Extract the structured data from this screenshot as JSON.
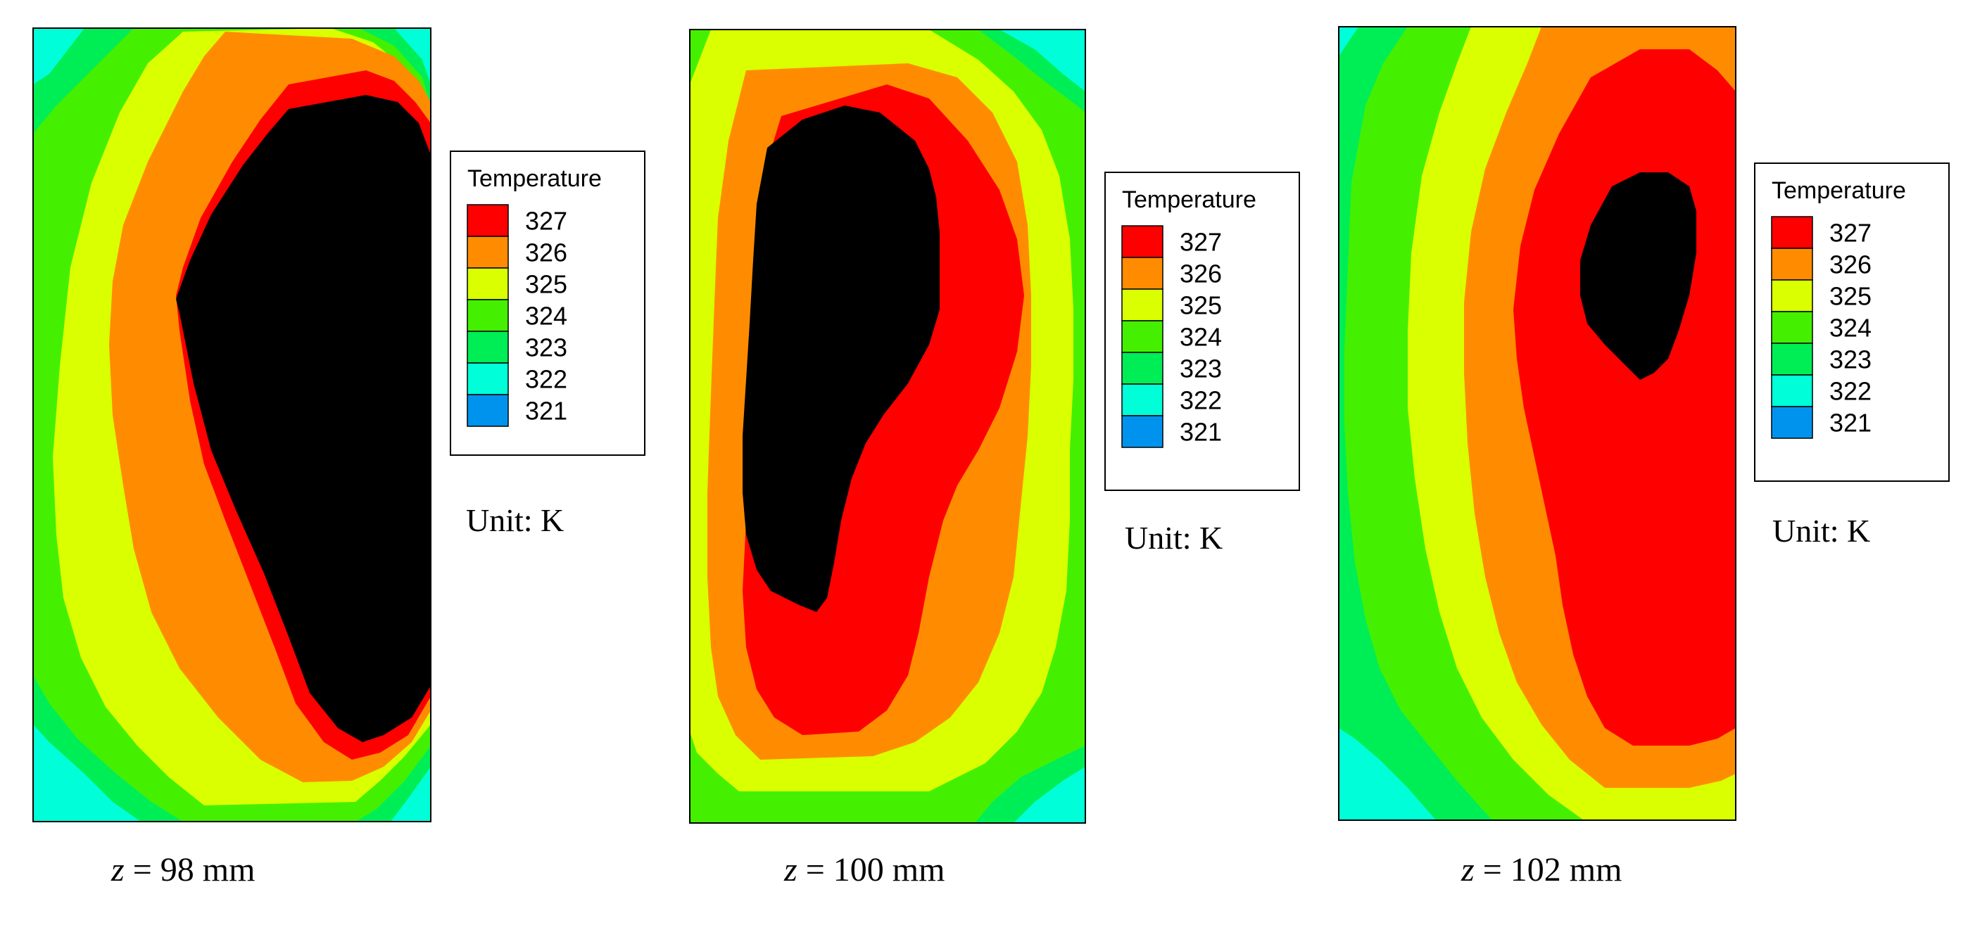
{
  "colors": {
    "level_327": "#ff0000",
    "level_326": "#ff8c00",
    "level_325": "#d9ff00",
    "level_324": "#44f000",
    "level_323": "#00ee55",
    "level_322": "#00ffd8",
    "level_321": "#0093ee",
    "level_320": "#0000ee",
    "frame": "#000000"
  },
  "chart_data": [
    {
      "type": "heatmap",
      "variable": "z",
      "position_value": "98",
      "position_unit": "mm",
      "caption_equals": " = 98 mm",
      "legend": {
        "title": "Temperature",
        "levels": [
          "327",
          "326",
          "325",
          "324",
          "323",
          "322",
          "321"
        ]
      },
      "unit_label": "Unit: K",
      "value_range": [
        321,
        327
      ]
    },
    {
      "type": "heatmap",
      "variable": "z",
      "position_value": "100",
      "position_unit": "mm",
      "caption_equals": " = 100 mm",
      "legend": {
        "title": "Temperature",
        "levels": [
          "327",
          "326",
          "325",
          "324",
          "323",
          "322",
          "321"
        ]
      },
      "unit_label": "Unit: K",
      "value_range": [
        321,
        327
      ]
    },
    {
      "type": "heatmap",
      "variable": "z",
      "position_value": "102",
      "position_unit": "mm",
      "caption_equals": " = 102 mm",
      "legend": {
        "title": "Temperature",
        "levels": [
          "327",
          "326",
          "325",
          "324",
          "323",
          "322",
          "321"
        ]
      },
      "unit_label": "Unit: K",
      "value_range": [
        321,
        327
      ]
    }
  ]
}
